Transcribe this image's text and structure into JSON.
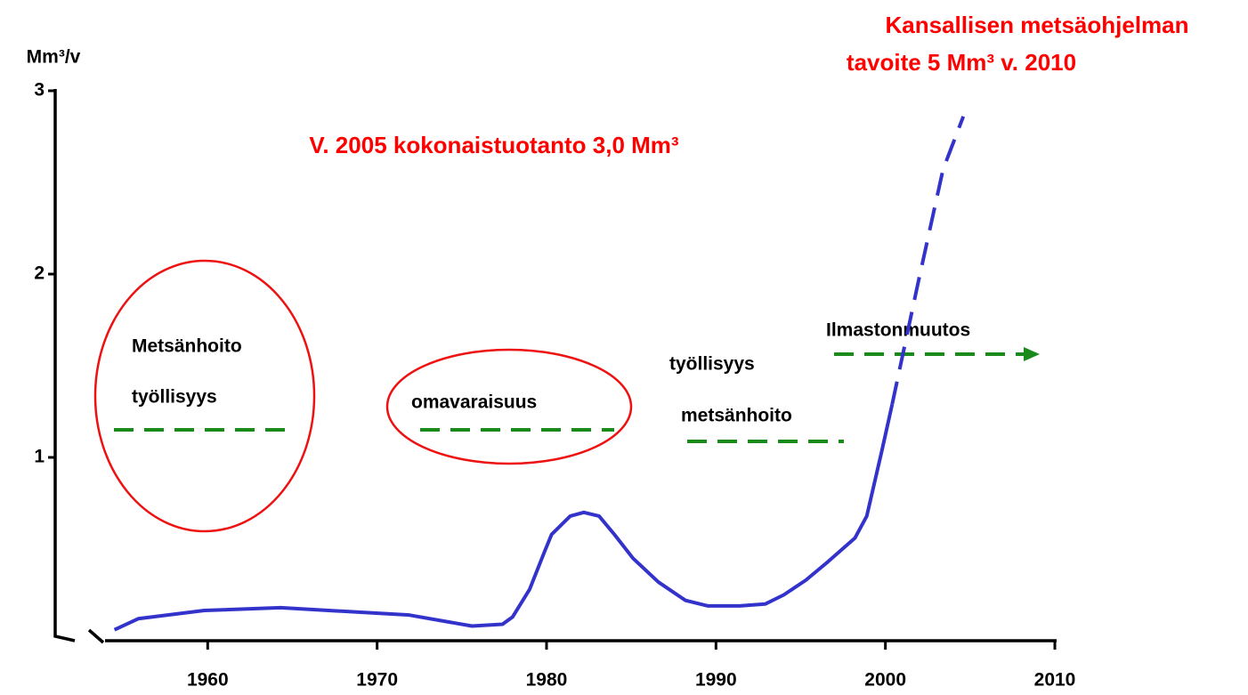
{
  "chart_data": {
    "type": "line",
    "title": [
      "Kansallisen metsäohjelman",
      "tavoite 5 Mm³ v. 2010"
    ],
    "subtitle": "V. 2005 kokonaistuotanto 3,0 Mm³",
    "y_label": "Mm³/v",
    "annotations": [
      "Metsänhoito",
      "työllisyys",
      "omavaraisuus",
      "työllisyys",
      "metsänhoito",
      "Ilmastonmuutos"
    ],
    "xlim": [
      1951,
      2010
    ],
    "xticks": [
      1960,
      1970,
      1980,
      1990,
      2000,
      2010
    ],
    "ylim": [
      0,
      3
    ],
    "yticks": [
      1,
      2,
      3
    ],
    "series": [
      {
        "color": "#3333cc",
        "style": "solid",
        "x": [
          1954.5,
          1955.9,
          1959.8,
          1964.3,
          1971.9,
          1975.6,
          1977.4,
          1978.0,
          1979.0,
          1979.9,
          1980.3,
          1981.4,
          1982.2,
          1983.1,
          1984.0,
          1985.1,
          1986.6,
          1988.2,
          1989.5,
          1991.4,
          1992.9,
          1994.0,
          1995.3,
          1996.6,
          1998.2,
          1998.9,
          1999.8,
          2000.4
        ],
        "values": [
          0.06,
          0.12,
          0.165,
          0.18,
          0.14,
          0.08,
          0.09,
          0.13,
          0.28,
          0.49,
          0.58,
          0.68,
          0.7,
          0.68,
          0.58,
          0.45,
          0.32,
          0.22,
          0.19,
          0.19,
          0.2,
          0.25,
          0.33,
          0.43,
          0.56,
          0.68,
          1.04,
          1.29
        ]
      },
      {
        "color": "#3333cc",
        "style": "dashed",
        "x": [
          2000.4,
          2001.9,
          2003.4,
          2004.6
        ],
        "values": [
          1.29,
          1.94,
          2.57,
          2.86
        ]
      }
    ]
  }
}
